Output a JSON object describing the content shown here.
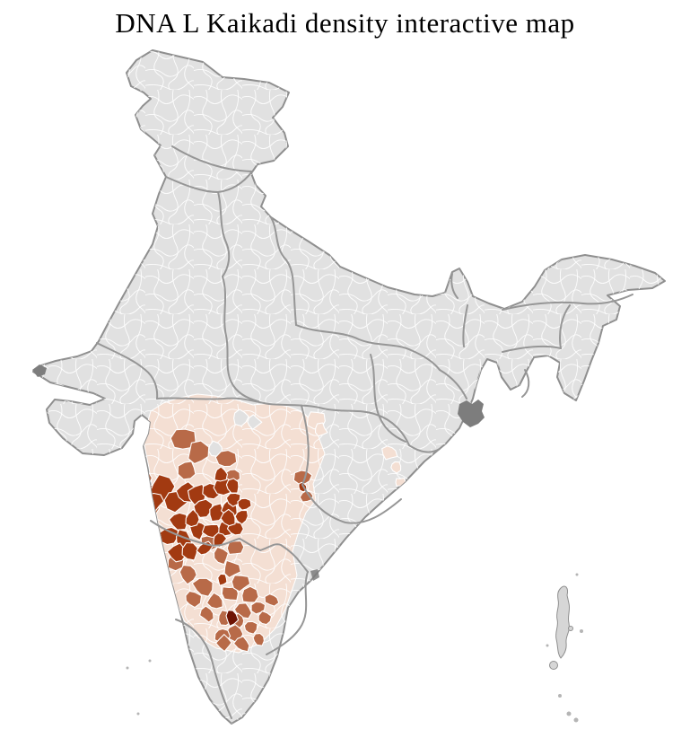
{
  "title": "DNA L Kaikadi density interactive map",
  "map": {
    "type": "choropleth-map",
    "colors": {
      "background": "#ffffff",
      "land": "#e1e1e1",
      "district_border": "#ffffff",
      "state_border": "#969696",
      "coast": "#8f8f8f",
      "delta_patch": "#7d7d7d",
      "island": "#d6d6d6",
      "title_text": "#000000"
    },
    "density_scale": [
      {
        "class": "none",
        "color": "#e1e1e1"
      },
      {
        "class": "low",
        "color": "#f4dfd3"
      },
      {
        "class": "medium",
        "color": "#b86a48"
      },
      {
        "class": "high",
        "color": "#a23a11"
      },
      {
        "class": "peak",
        "color": "#6e1404"
      }
    ]
  }
}
